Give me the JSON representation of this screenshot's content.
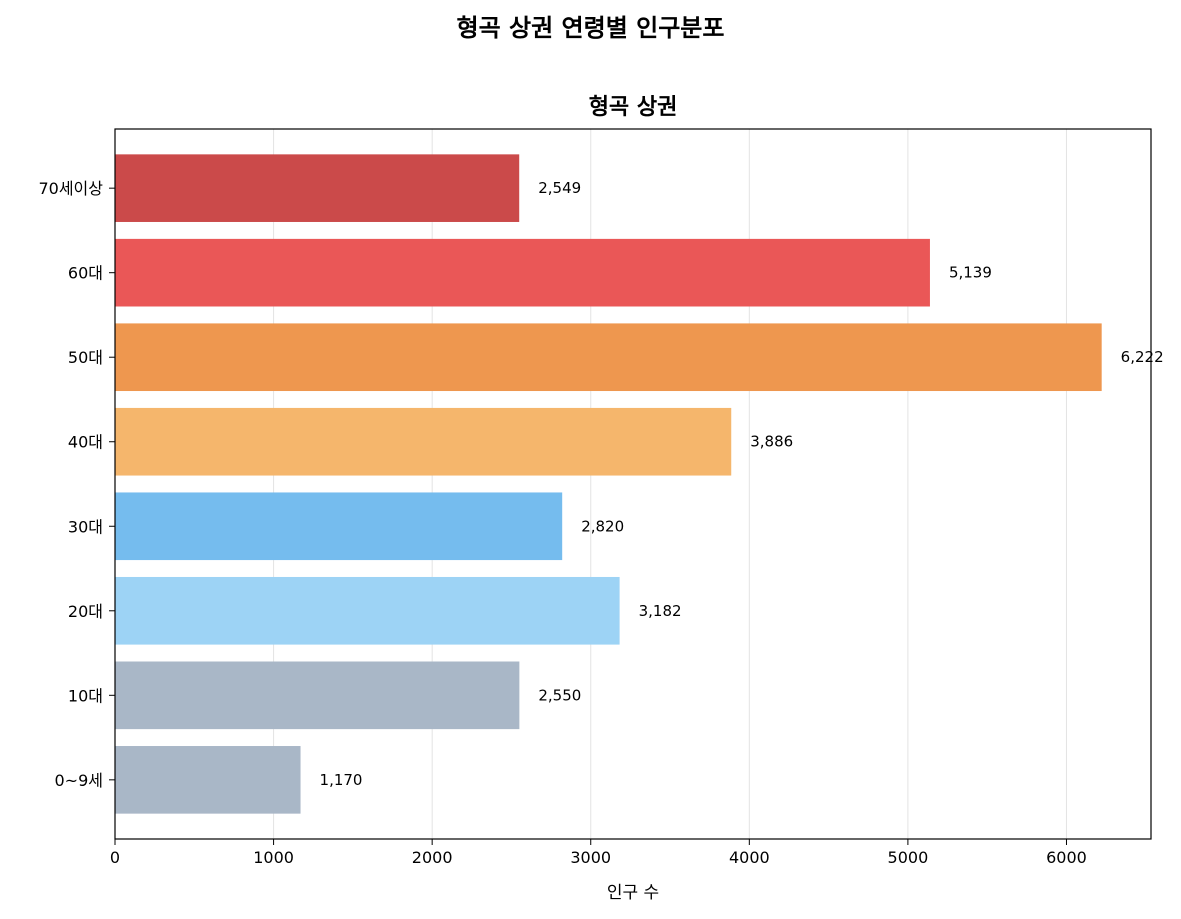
{
  "suptitle": "형곡 상권 연령별 인구분포",
  "chart_data": {
    "type": "bar",
    "orientation": "horizontal",
    "title": "형곡 상권",
    "xlabel": "인구 수",
    "ylabel": "",
    "xlim": [
      0,
      6533
    ],
    "xticks": [
      0,
      1000,
      2000,
      3000,
      4000,
      5000,
      6000
    ],
    "grid": "x",
    "categories": [
      "0~9세",
      "10대",
      "20대",
      "30대",
      "40대",
      "50대",
      "60대",
      "70세이상"
    ],
    "values": [
      1170,
      2550,
      3182,
      2820,
      3886,
      6222,
      5139,
      2549
    ],
    "value_labels": [
      "1,170",
      "2,550",
      "3,182",
      "2,820",
      "3,886",
      "6,222",
      "5,139",
      "2,549"
    ],
    "colors": [
      "#A9B7C7",
      "#A9B7C7",
      "#9DD3F5",
      "#75BCEE",
      "#F5B66C",
      "#EE974F",
      "#EA5757",
      "#CB4A4A"
    ]
  }
}
